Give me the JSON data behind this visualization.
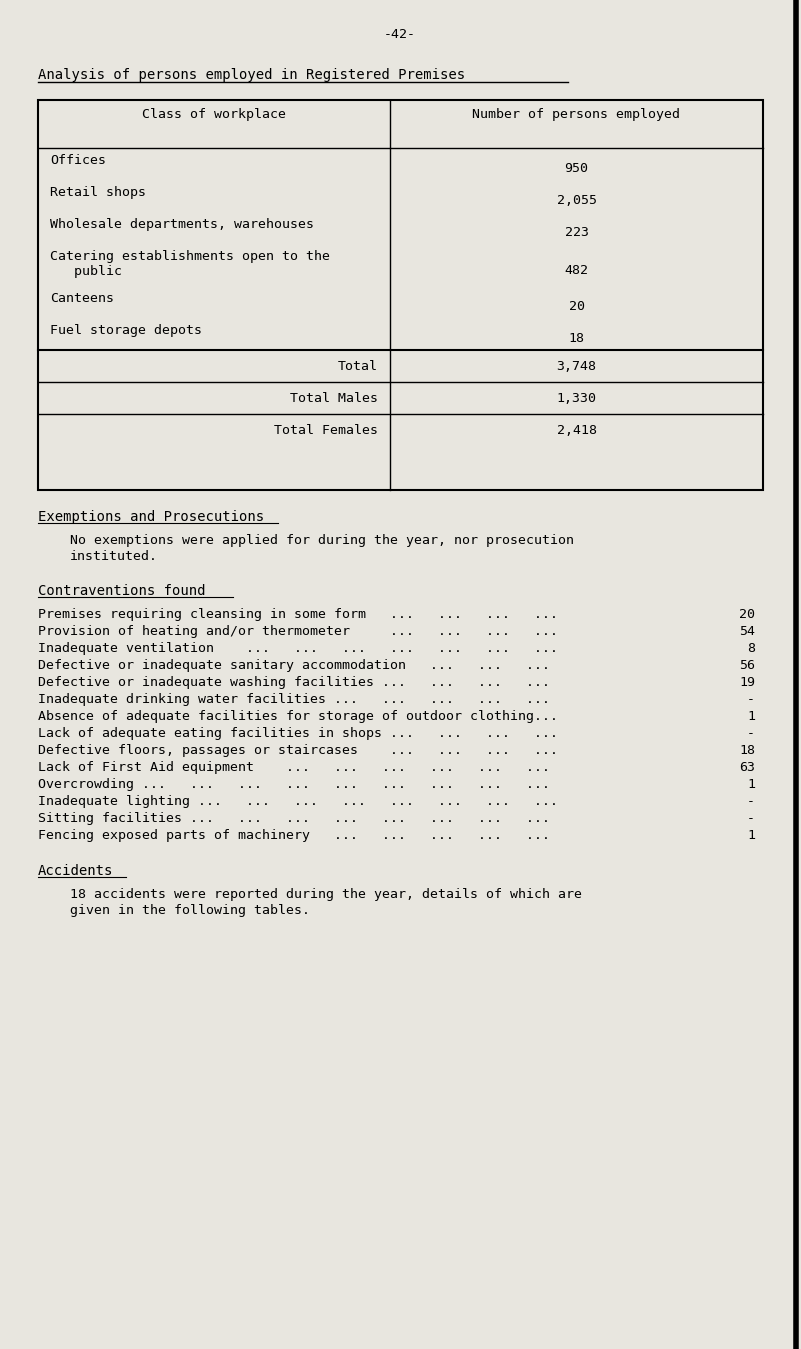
{
  "page_number": "-42-",
  "bg_color": "#e8e6df",
  "title": "Analysis of persons employed in Registered Premises",
  "table_header": [
    "Class of workplace",
    "Number of persons employed"
  ],
  "table_rows": [
    [
      "Offices",
      "950"
    ],
    [
      "Retail shops",
      "2,055"
    ],
    [
      "Wholesale departments, warehouses",
      "223"
    ],
    [
      "Catering establishments open to the\n   public",
      "482"
    ],
    [
      "Canteens",
      "20"
    ],
    [
      "Fuel storage depots",
      "18"
    ]
  ],
  "table_totals": [
    [
      "Total",
      "3,748"
    ],
    [
      "Total Males",
      "1,330"
    ],
    [
      "Total Females",
      "2,418"
    ]
  ],
  "section2_title": "Exemptions and Prosecutions",
  "section2_text": "No exemptions were applied for during the year, nor prosecution\ninstituted.",
  "section3_title": "Contraventions found",
  "contraventions": [
    [
      "Premises requiring cleansing in some form   ...   ...   ...   ...",
      "20"
    ],
    [
      "Provision of heating and/or thermometer     ...   ...   ...   ...",
      "54"
    ],
    [
      "Inadequate ventilation    ...   ...   ...   ...   ...   ...   ...",
      "8"
    ],
    [
      "Defective or inadequate sanitary accommodation   ...   ...   ...",
      "56"
    ],
    [
      "Defective or inadequate washing facilities ...   ...   ...   ...",
      "19"
    ],
    [
      "Inadequate drinking water facilities ...   ...   ...   ...   ...",
      "-"
    ],
    [
      "Absence of adequate facilities for storage of outdoor clothing...",
      "1"
    ],
    [
      "Lack of adequate eating facilities in shops ...   ...   ...   ...",
      "-"
    ],
    [
      "Defective floors, passages or staircases    ...   ...   ...   ...",
      "18"
    ],
    [
      "Lack of First Aid equipment    ...   ...   ...   ...   ...   ...",
      "63"
    ],
    [
      "Overcrowding ...   ...   ...   ...   ...   ...   ...   ...   ...",
      "1"
    ],
    [
      "Inadequate lighting ...   ...   ...   ...   ...   ...   ...   ...",
      "-"
    ],
    [
      "Sitting facilities ...   ...   ...   ...   ...   ...   ...   ...",
      "-"
    ],
    [
      "Fencing exposed parts of machinery   ...   ...   ...   ...   ...",
      "1"
    ]
  ],
  "section4_title": "Accidents",
  "section4_text": "18 accidents were reported during the year, details of which are\ngiven in the following tables.",
  "font_size": 9.5,
  "title_font_size": 10,
  "section_title_font_size": 10
}
